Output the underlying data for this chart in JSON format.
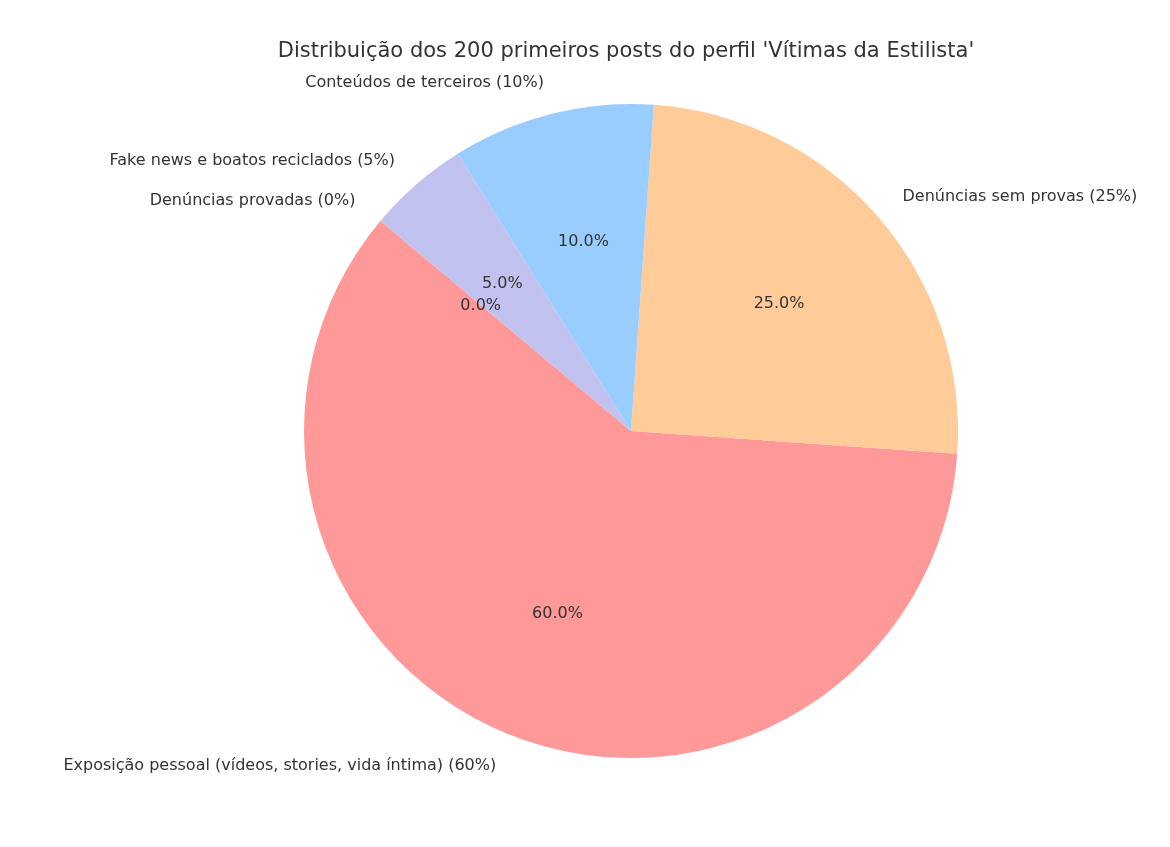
{
  "chart_data": {
    "type": "pie",
    "title": "Distribuição dos 200 primeiros posts do perfil 'Vítimas da Estilista'",
    "categories": [
      "Exposição pessoal (vídeos, stories, vida íntima) (60%)",
      "Denúncias sem provas (25%)",
      "Conteúdos de terceiros (10%)",
      "Fake news e boatos reciclados (5%)",
      "Denúncias provadas (0%)"
    ],
    "values": [
      60,
      25,
      10,
      5,
      0
    ],
    "value_labels": [
      "60.0%",
      "25.0%",
      "10.0%",
      "5.0%",
      "0.0%"
    ],
    "colors": [
      "#ff9999",
      "#ffcc99",
      "#99ccff",
      "#c2c2f0",
      "#ffb3e6"
    ],
    "legend": false
  }
}
